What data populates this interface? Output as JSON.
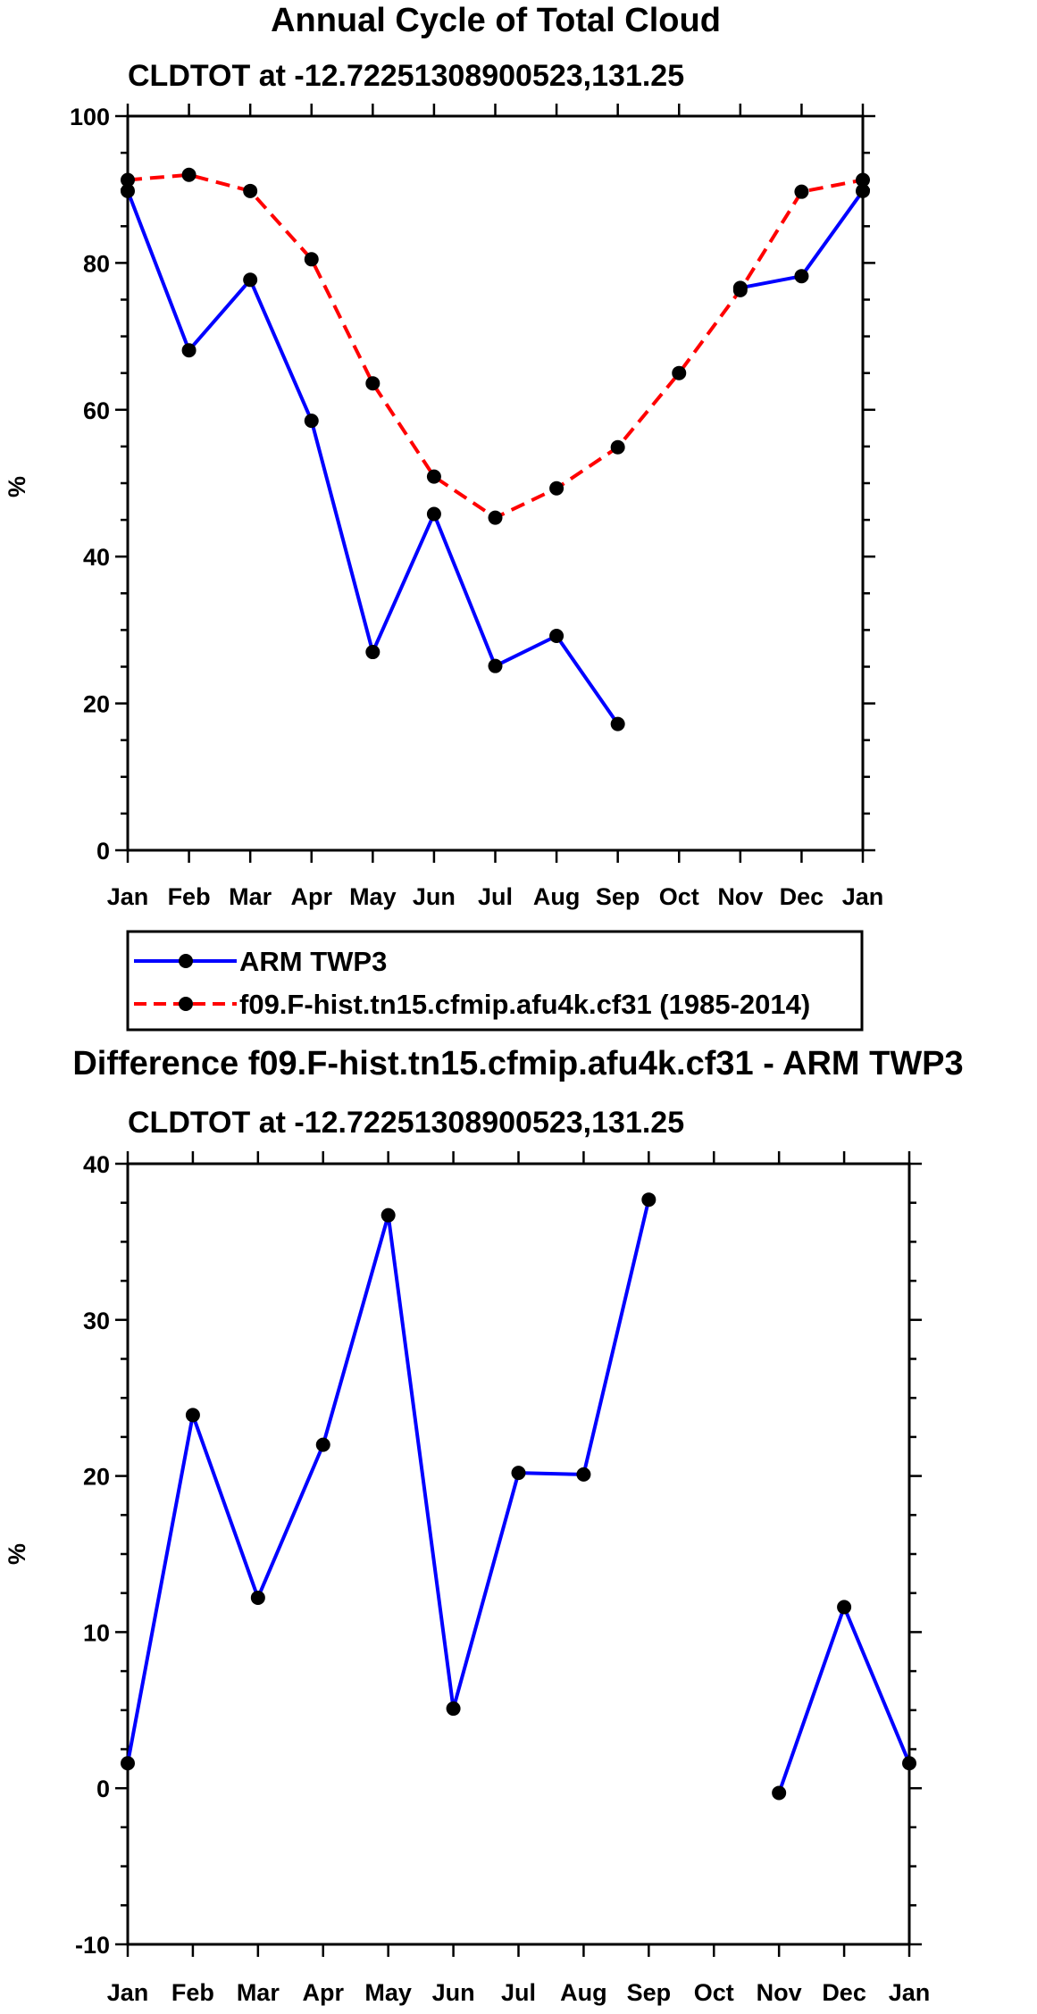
{
  "chart_data": [
    {
      "type": "line",
      "title": "Annual Cycle of Total Cloud",
      "subtitle": "CLDTOT at -12.72251308900523,131.25",
      "xlabel": "",
      "ylabel": "%",
      "categories": [
        "Jan",
        "Feb",
        "Mar",
        "Apr",
        "May",
        "Jun",
        "Jul",
        "Aug",
        "Sep",
        "Oct",
        "Nov",
        "Dec",
        "Jan"
      ],
      "ylim": [
        0,
        100
      ],
      "yticks": [
        0,
        20,
        40,
        60,
        80,
        100
      ],
      "series": [
        {
          "name": "ARM TWP3",
          "color": "#0000ff",
          "dash": "solid",
          "values": [
            89.8,
            68.1,
            77.7,
            58.5,
            27.0,
            45.8,
            25.1,
            29.2,
            17.2,
            null,
            76.6,
            78.2,
            89.8
          ]
        },
        {
          "name": "f09.F-hist.tn15.cfmip.afu4k.cf31 (1985-2014)",
          "color": "#ff0000",
          "dash": "dashed",
          "values": [
            91.3,
            92.0,
            89.8,
            80.5,
            63.6,
            50.9,
            45.3,
            49.3,
            54.9,
            65.0,
            76.3,
            89.7,
            91.3
          ]
        }
      ],
      "legend": {
        "position": "bottom",
        "entries": [
          "ARM TWP3",
          "f09.F-hist.tn15.cfmip.afu4k.cf31 (1985-2014)"
        ]
      }
    },
    {
      "type": "line",
      "title": "Difference f09.F-hist.tn15.cfmip.afu4k.cf31 - ARM TWP3",
      "subtitle": "CLDTOT at -12.72251308900523,131.25",
      "xlabel": "",
      "ylabel": "%",
      "categories": [
        "Jan",
        "Feb",
        "Mar",
        "Apr",
        "May",
        "Jun",
        "Jul",
        "Aug",
        "Sep",
        "Oct",
        "Nov",
        "Dec",
        "Jan"
      ],
      "ylim": [
        -10,
        40
      ],
      "yticks": [
        -10,
        0,
        10,
        20,
        30,
        40
      ],
      "series": [
        {
          "name": "Difference",
          "color": "#0000ff",
          "dash": "solid",
          "values": [
            1.6,
            23.9,
            12.2,
            22.0,
            36.7,
            5.1,
            20.2,
            20.1,
            37.7,
            null,
            -0.3,
            11.6,
            1.6
          ]
        }
      ]
    }
  ]
}
